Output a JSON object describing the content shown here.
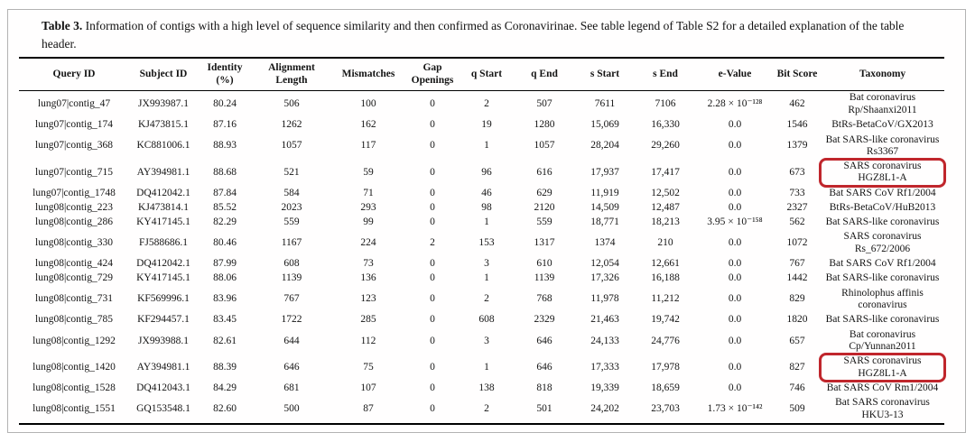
{
  "caption": {
    "label": "Table 3.",
    "text": "Information of contigs with a high level of sequence similarity and then confirmed as Coronavirinae. See table legend of Table S2 for a detailed explanation of the table header."
  },
  "highlight_color": "#c0262c",
  "table": {
    "columns": [
      "Query ID",
      "Subject ID",
      "Identity (%)",
      "Alignment Length",
      "Mismatches",
      "Gap Openings",
      "q Start",
      "q End",
      "s Start",
      "s End",
      "e-Value",
      "Bit Score",
      "Taxonomy"
    ],
    "column_keys": [
      "query-id",
      "subject-id",
      "identity",
      "alignment-length",
      "mismatches",
      "gap-openings",
      "q-start",
      "q-end",
      "s-start",
      "s-end",
      "e-value",
      "bit-score",
      "taxonomy"
    ],
    "rows": [
      {
        "cells": [
          "lung07|contig_47",
          "JX993987.1",
          "80.24",
          "506",
          "100",
          "0",
          "2",
          "507",
          "7611",
          "7106",
          "2.28 × 10⁻¹²⁸",
          "462",
          "Bat coronavirus Rp/Shaanxi2011"
        ],
        "highlighted": false
      },
      {
        "cells": [
          "lung07|contig_174",
          "KJ473815.1",
          "87.16",
          "1262",
          "162",
          "0",
          "19",
          "1280",
          "15,069",
          "16,330",
          "0.0",
          "1546",
          "BtRs-BetaCoV/GX2013"
        ],
        "highlighted": false
      },
      {
        "cells": [
          "lung07|contig_368",
          "KC881006.1",
          "88.93",
          "1057",
          "117",
          "0",
          "1",
          "1057",
          "28,204",
          "29,260",
          "0.0",
          "1379",
          "Bat SARS-like coronavirus Rs3367"
        ],
        "highlighted": false
      },
      {
        "cells": [
          "lung07|contig_715",
          "AY394981.1",
          "88.68",
          "521",
          "59",
          "0",
          "96",
          "616",
          "17,937",
          "17,417",
          "0.0",
          "673",
          "SARS coronavirus HGZ8L1-A"
        ],
        "highlighted": true
      },
      {
        "cells": [
          "lung07|contig_1748",
          "DQ412042.1",
          "87.84",
          "584",
          "71",
          "0",
          "46",
          "629",
          "11,919",
          "12,502",
          "0.0",
          "733",
          "Bat SARS CoV Rf1/2004"
        ],
        "highlighted": false
      },
      {
        "cells": [
          "lung08|contig_223",
          "KJ473814.1",
          "85.52",
          "2023",
          "293",
          "0",
          "98",
          "2120",
          "14,509",
          "12,487",
          "0.0",
          "2327",
          "BtRs-BetaCoV/HuB2013"
        ],
        "highlighted": false
      },
      {
        "cells": [
          "lung08|contig_286",
          "KY417145.1",
          "82.29",
          "559",
          "99",
          "0",
          "1",
          "559",
          "18,771",
          "18,213",
          "3.95 × 10⁻¹⁵⁸",
          "562",
          "Bat SARS-like coronavirus"
        ],
        "highlighted": false
      },
      {
        "cells": [
          "lung08|contig_330",
          "FJ588686.1",
          "80.46",
          "1167",
          "224",
          "2",
          "153",
          "1317",
          "1374",
          "210",
          "0.0",
          "1072",
          "SARS coronavirus Rs_672/2006"
        ],
        "highlighted": false
      },
      {
        "cells": [
          "lung08|contig_424",
          "DQ412042.1",
          "87.99",
          "608",
          "73",
          "0",
          "3",
          "610",
          "12,054",
          "12,661",
          "0.0",
          "767",
          "Bat SARS CoV Rf1/2004"
        ],
        "highlighted": false
      },
      {
        "cells": [
          "lung08|contig_729",
          "KY417145.1",
          "88.06",
          "1139",
          "136",
          "0",
          "1",
          "1139",
          "17,326",
          "16,188",
          "0.0",
          "1442",
          "Bat SARS-like coronavirus"
        ],
        "highlighted": false
      },
      {
        "cells": [
          "lung08|contig_731",
          "KF569996.1",
          "83.96",
          "767",
          "123",
          "0",
          "2",
          "768",
          "11,978",
          "11,212",
          "0.0",
          "829",
          "Rhinolophus affinis coronavirus"
        ],
        "highlighted": false
      },
      {
        "cells": [
          "lung08|contig_785",
          "KF294457.1",
          "83.45",
          "1722",
          "285",
          "0",
          "608",
          "2329",
          "21,463",
          "19,742",
          "0.0",
          "1820",
          "Bat SARS-like coronavirus"
        ],
        "highlighted": false
      },
      {
        "cells": [
          "lung08|contig_1292",
          "JX993988.1",
          "82.61",
          "644",
          "112",
          "0",
          "3",
          "646",
          "24,133",
          "24,776",
          "0.0",
          "657",
          "Bat coronavirus Cp/Yunnan2011"
        ],
        "highlighted": false
      },
      {
        "cells": [
          "lung08|contig_1420",
          "AY394981.1",
          "88.39",
          "646",
          "75",
          "0",
          "1",
          "646",
          "17,333",
          "17,978",
          "0.0",
          "827",
          "SARS coronavirus HGZ8L1-A"
        ],
        "highlighted": true
      },
      {
        "cells": [
          "lung08|contig_1528",
          "DQ412043.1",
          "84.29",
          "681",
          "107",
          "0",
          "138",
          "818",
          "19,339",
          "18,659",
          "0.0",
          "746",
          "Bat SARS CoV Rm1/2004"
        ],
        "highlighted": false
      },
      {
        "cells": [
          "lung08|contig_1551",
          "GQ153548.1",
          "82.60",
          "500",
          "87",
          "0",
          "2",
          "501",
          "24,202",
          "23,703",
          "1.73 × 10⁻¹⁴²",
          "509",
          "Bat SARS coronavirus HKU3-13"
        ],
        "highlighted": false
      }
    ]
  }
}
